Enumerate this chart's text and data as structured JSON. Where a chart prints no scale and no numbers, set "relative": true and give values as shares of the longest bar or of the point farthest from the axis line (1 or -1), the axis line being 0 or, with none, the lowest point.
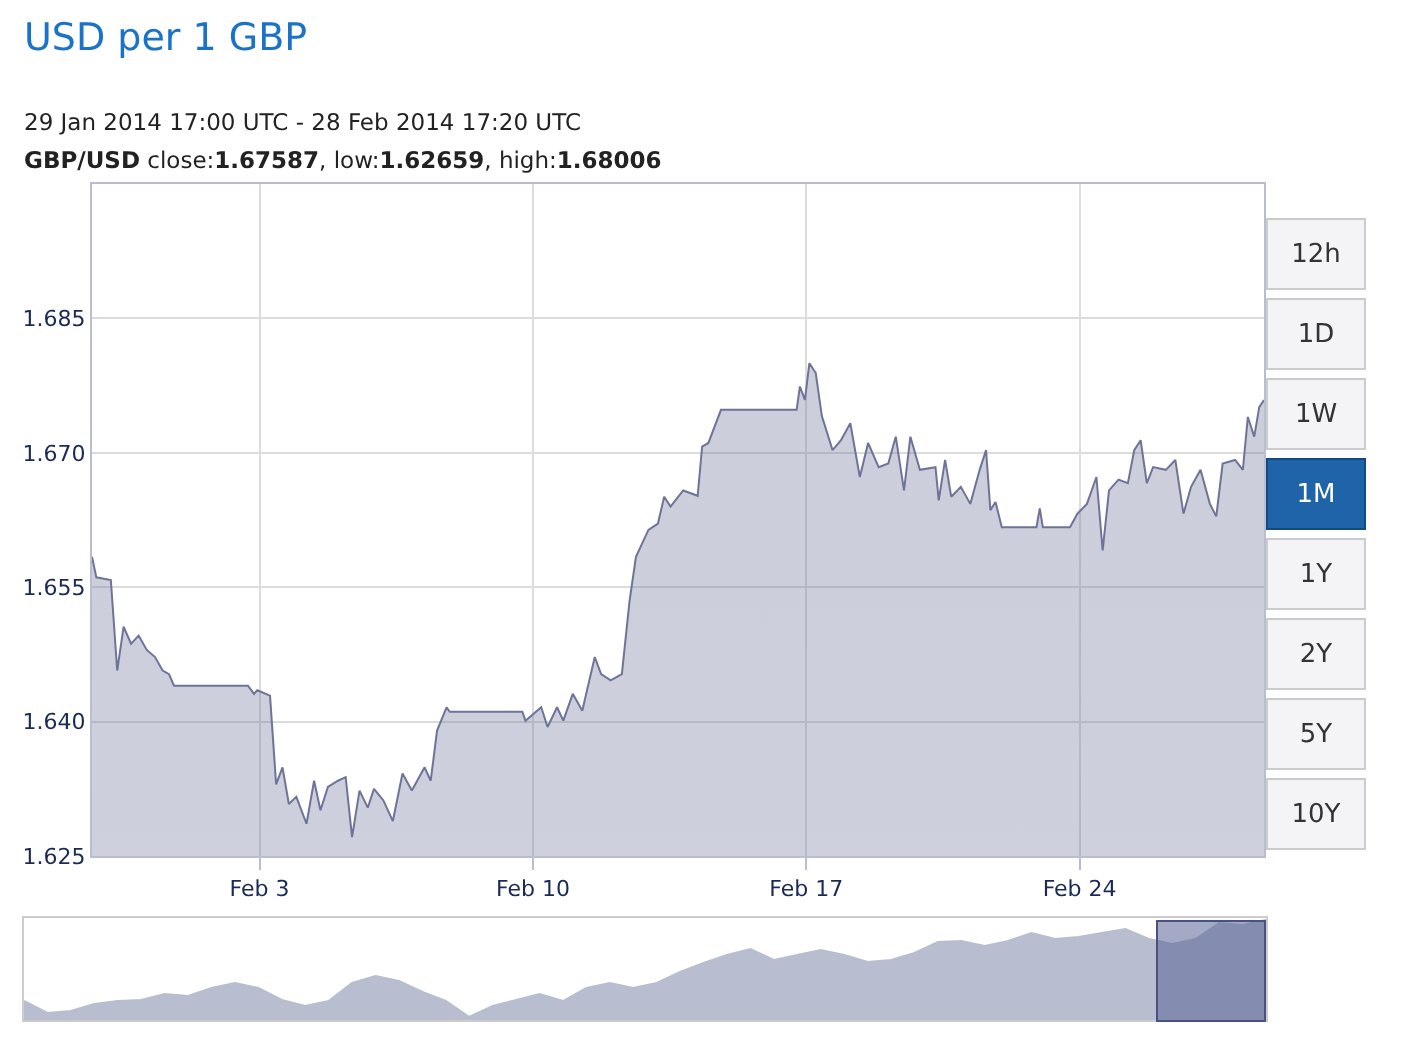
{
  "chart_data": [
    {
      "type": "area",
      "title": "USD per 1 GBP",
      "subtitle": "29 Jan 2014 17:00 UTC - 28 Feb 2014 17:20 UTC",
      "annotations": [
        "GBP/USD close:1.67587, low:1.62659, high:1.68006",
        "12h",
        "1D",
        "1W",
        "1M",
        "1Y",
        "2Y",
        "5Y",
        "10Y"
      ],
      "color": "#6e7399",
      "x": [
        "2014-01-29T17:00",
        "2014-01-29T19:40",
        "2014-01-30T04:35",
        "2014-01-30T08:30",
        "2014-01-30T12:25",
        "2014-01-30T17:00",
        "2014-01-30T21:40",
        "2014-01-31T02:40",
        "2014-01-31T07:45",
        "2014-01-31T12:25",
        "2014-01-31T16:20",
        "2014-01-31T19:25",
        "2014-02-02T16:50",
        "2014-02-02T20:35",
        "2014-02-02T22:35",
        "2014-02-03T06:25",
        "2014-02-03T10:10",
        "2014-02-03T14:05",
        "2014-02-03T18:00",
        "2014-02-03T22:35",
        "2014-02-04T04:50",
        "2014-02-04T09:30",
        "2014-02-04T13:25",
        "2014-02-04T18:00",
        "2014-02-05T00:10",
        "2014-02-05T04:55",
        "2014-02-05T08:50",
        "2014-02-05T13:25",
        "2014-02-05T18:30",
        "2014-02-05T22:20",
        "2014-02-06T04:05",
        "2014-02-06T09:55",
        "2014-02-06T15:50",
        "2014-02-06T21:35",
        "2014-02-07T05:25",
        "2014-02-07T09:10",
        "2014-02-07T13:05",
        "2014-02-07T18:55",
        "2014-02-07T20:55",
        "2014-02-09T17:30",
        "2014-02-09T19:25",
        "2014-02-10T05:05",
        "2014-02-10T09:00",
        "2014-02-10T14:50",
        "2014-02-10T18:40",
        "2014-02-11T00:30",
        "2014-02-11T06:20",
        "2014-02-11T14:00",
        "2014-02-11T17:55",
        "2014-02-11T23:45",
        "2014-02-12T06:40",
        "2014-02-12T11:25",
        "2014-02-12T15:20",
        "2014-02-12T23:00",
        "2014-02-13T04:50",
        "2014-02-13T08:40",
        "2014-02-13T12:35",
        "2014-02-13T20:20",
        "2014-02-14T05:15",
        "2014-02-14T08:00",
        "2014-02-14T11:50",
        "2014-02-14T19:35",
        "2014-02-16T18:05",
        "2014-02-16T20:05",
        "2014-02-16T23:10",
        "2014-02-17T01:55",
        "2014-02-17T05:50",
        "2014-02-17T09:35",
        "2014-02-17T16:10",
        "2014-02-17T21:20",
        "2014-02-18T03:05",
        "2014-02-18T08:55",
        "2014-02-18T14:00",
        "2014-02-18T20:30",
        "2014-02-19T02:25",
        "2014-02-19T07:00",
        "2014-02-19T12:05",
        "2014-02-19T16:00",
        "2014-02-19T21:50",
        "2014-02-20T07:25",
        "2014-02-20T09:25",
        "2014-02-20T13:20",
        "2014-02-20T17:05",
        "2014-02-20T23:00",
        "2014-02-21T04:50",
        "2014-02-21T10:35",
        "2014-02-21T14:30",
        "2014-02-21T17:10",
        "2014-02-21T20:20",
        "2014-02-22T00:10",
        "2014-02-22T21:30",
        "2014-02-22T23:30",
        "2014-02-23T01:25",
        "2014-02-23T18:05",
        "2014-02-23T22:40",
        "2014-02-24T04:30",
        "2014-02-24T10:20",
        "2014-02-24T14:10",
        "2014-02-24T18:05",
        "2014-02-24T23:55",
        "2014-02-25T05:40",
        "2014-02-25T09:35",
        "2014-02-25T13:30",
        "2014-02-25T17:20",
        "2014-02-25T21:10",
        "2014-02-26T05:00",
        "2014-02-26T10:50",
        "2014-02-26T15:50",
        "2014-02-26T20:30",
        "2014-02-27T02:20",
        "2014-02-27T08:05",
        "2014-02-27T12:00",
        "2014-02-27T15:55",
        "2014-02-27T23:35",
        "2014-02-28T04:20",
        "2014-02-28T07:25",
        "2014-02-28T11:20",
        "2014-02-28T14:25",
        "2014-02-28T17:20"
      ],
      "values": [
        1.6584,
        1.6561,
        1.6558,
        1.6457,
        1.6506,
        1.6487,
        1.6496,
        1.648,
        1.6472,
        1.6457,
        1.6453,
        1.644,
        1.644,
        1.6431,
        1.6435,
        1.6429,
        1.633,
        1.6349,
        1.6308,
        1.6316,
        1.6286,
        1.6334,
        1.6301,
        1.6327,
        1.6334,
        1.6338,
        1.6271,
        1.6323,
        1.6304,
        1.6325,
        1.6312,
        1.6289,
        1.6342,
        1.6323,
        1.6349,
        1.6334,
        1.639,
        1.6416,
        1.6411,
        1.6411,
        1.6401,
        1.6416,
        1.6394,
        1.6416,
        1.6401,
        1.6431,
        1.6412,
        1.6472,
        1.6453,
        1.6446,
        1.6453,
        1.6535,
        1.6584,
        1.6614,
        1.6621,
        1.6651,
        1.664,
        1.6658,
        1.6652,
        1.6707,
        1.6711,
        1.6748,
        1.6748,
        1.6774,
        1.6759,
        1.68,
        1.6789,
        1.6741,
        1.6703,
        1.6714,
        1.6733,
        1.6673,
        1.6711,
        1.6684,
        1.6688,
        1.6718,
        1.6658,
        1.6718,
        1.6681,
        1.6684,
        1.6647,
        1.6692,
        1.6651,
        1.6662,
        1.6643,
        1.6681,
        1.6703,
        1.6636,
        1.6645,
        1.6617,
        1.6617,
        1.6638,
        1.6617,
        1.6617,
        1.6632,
        1.6643,
        1.6673,
        1.6591,
        1.6658,
        1.667,
        1.6666,
        1.6703,
        1.6714,
        1.6666,
        1.6684,
        1.6681,
        1.6692,
        1.6632,
        1.6662,
        1.6681,
        1.6643,
        1.6629,
        1.6688,
        1.6692,
        1.6681,
        1.674,
        1.6718,
        1.6751,
        1.6759
      ],
      "xlim": [
        "2014-01-29T17:00",
        "2014-02-28T17:20"
      ],
      "ylim": [
        1.625,
        1.7
      ],
      "xticks": [
        {
          "value": "2014-02-03",
          "label": "Feb 3"
        },
        {
          "value": "2014-02-10",
          "label": "Feb 10"
        },
        {
          "value": "2014-02-17",
          "label": "Feb 17"
        },
        {
          "value": "2014-02-24",
          "label": "Feb 24"
        }
      ],
      "yticks": [
        1.625,
        {
          "value": 1.64,
          "label": "1.640"
        },
        1.655,
        {
          "value": 1.67,
          "label": "1.670"
        },
        1.685
      ],
      "grid": true
    },
    {
      "type": "area",
      "relative": true,
      "color": "#b8bdd0",
      "categories": [
        null,
        null,
        null,
        null,
        null,
        null,
        null,
        null,
        null,
        null,
        null,
        null,
        null,
        null,
        null,
        null,
        null,
        null,
        null,
        null,
        null,
        null,
        null,
        null,
        null,
        null,
        null,
        null,
        null,
        null,
        null,
        null,
        null,
        null,
        null,
        null,
        null,
        null,
        null,
        null,
        null,
        null,
        null,
        null,
        null,
        null,
        null,
        null,
        null,
        null,
        null,
        null,
        null,
        null
      ],
      "values": [
        0.19,
        0.07,
        0.09,
        0.16,
        0.19,
        0.2,
        0.26,
        0.24,
        0.32,
        0.37,
        0.32,
        0.2,
        0.14,
        0.19,
        0.37,
        0.44,
        0.39,
        0.28,
        0.19,
        0.03,
        0.14,
        0.2,
        0.26,
        0.19,
        0.32,
        0.37,
        0.32,
        0.37,
        0.48,
        0.57,
        0.65,
        0.71,
        0.6,
        0.65,
        0.7,
        0.65,
        0.58,
        0.6,
        0.67,
        0.78,
        0.79,
        0.74,
        0.79,
        0.87,
        0.81,
        0.83,
        0.87,
        0.91,
        0.81,
        0.76,
        0.81,
        0.97,
        0.95,
        1
      ]
    }
  ]
}
